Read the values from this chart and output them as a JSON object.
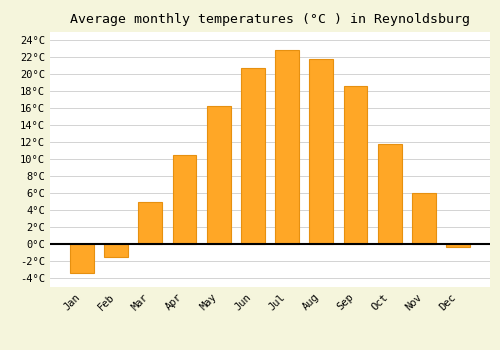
{
  "title": "Average monthly temperatures (°C ) in Reynoldsburg",
  "months": [
    "Jan",
    "Feb",
    "Mar",
    "Apr",
    "May",
    "Jun",
    "Jul",
    "Aug",
    "Sep",
    "Oct",
    "Nov",
    "Dec"
  ],
  "temperatures": [
    -3.3,
    -1.5,
    5.0,
    10.5,
    16.2,
    20.7,
    22.8,
    21.8,
    18.6,
    11.8,
    6.0,
    -0.3
  ],
  "bar_color": "#FFA726",
  "bar_edge_color": "#E69010",
  "background_color": "#F5F5DC",
  "plot_bg_color": "#FFFFFF",
  "ylim": [
    -5,
    25
  ],
  "yticks": [
    -4,
    -2,
    0,
    2,
    4,
    6,
    8,
    10,
    12,
    14,
    16,
    18,
    20,
    22,
    24
  ],
  "grid_color": "#CCCCCC",
  "title_fontsize": 9.5,
  "tick_fontsize": 7.5,
  "zero_line_color": "#000000",
  "bar_width": 0.7
}
